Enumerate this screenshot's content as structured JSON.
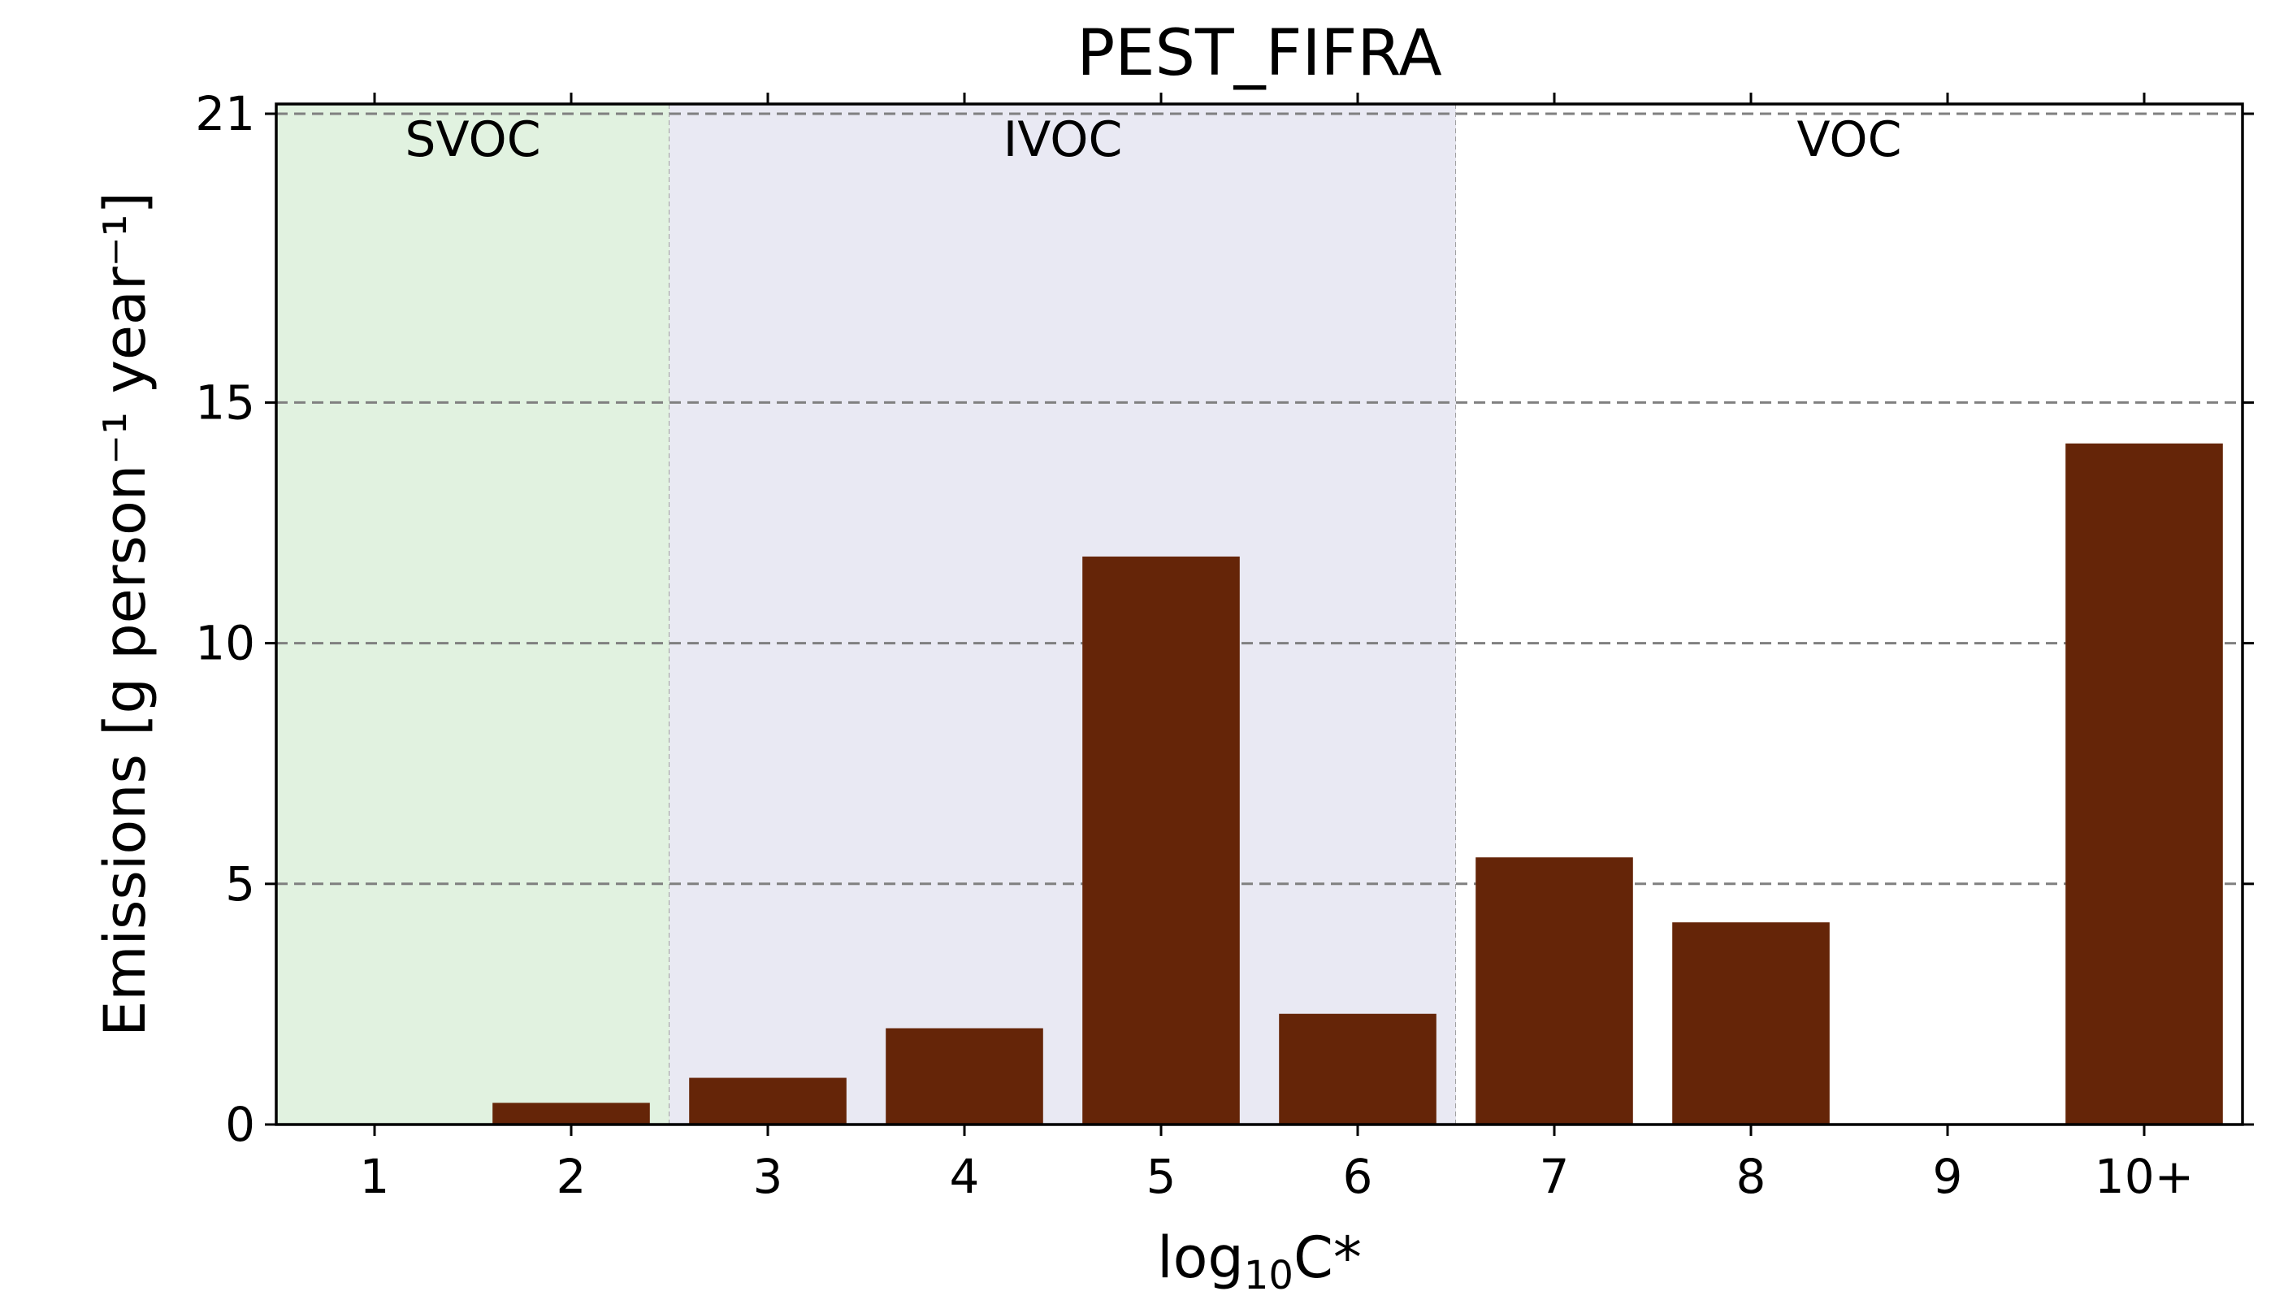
{
  "chart_data": {
    "type": "bar",
    "title": "PEST_FIFRA",
    "xlabel_main": "log",
    "xlabel_sub": "10",
    "xlabel_tail": "C*",
    "ylabel": "Emissions [g person⁻¹ year⁻¹]",
    "categories": [
      "1",
      "2",
      "3",
      "4",
      "5",
      "6",
      "7",
      "8",
      "9",
      "10+"
    ],
    "values": [
      0.0,
      0.45,
      0.97,
      2.0,
      11.8,
      2.3,
      5.55,
      4.2,
      0.0,
      14.15
    ],
    "ylim": [
      0,
      21
    ],
    "yticks": [
      0,
      5,
      10,
      15,
      21
    ],
    "grid": "horizontal dashed",
    "bar_color": "#652508",
    "regions": [
      {
        "label": "SVOC",
        "from_category": 0,
        "to_category": 1,
        "color": "#e1f2e0"
      },
      {
        "label": "IVOC",
        "from_category": 2,
        "to_category": 5,
        "color": "#e9e9f3"
      },
      {
        "label": "VOC",
        "from_category": 6,
        "to_category": 9,
        "color": "#ffffff"
      }
    ]
  }
}
